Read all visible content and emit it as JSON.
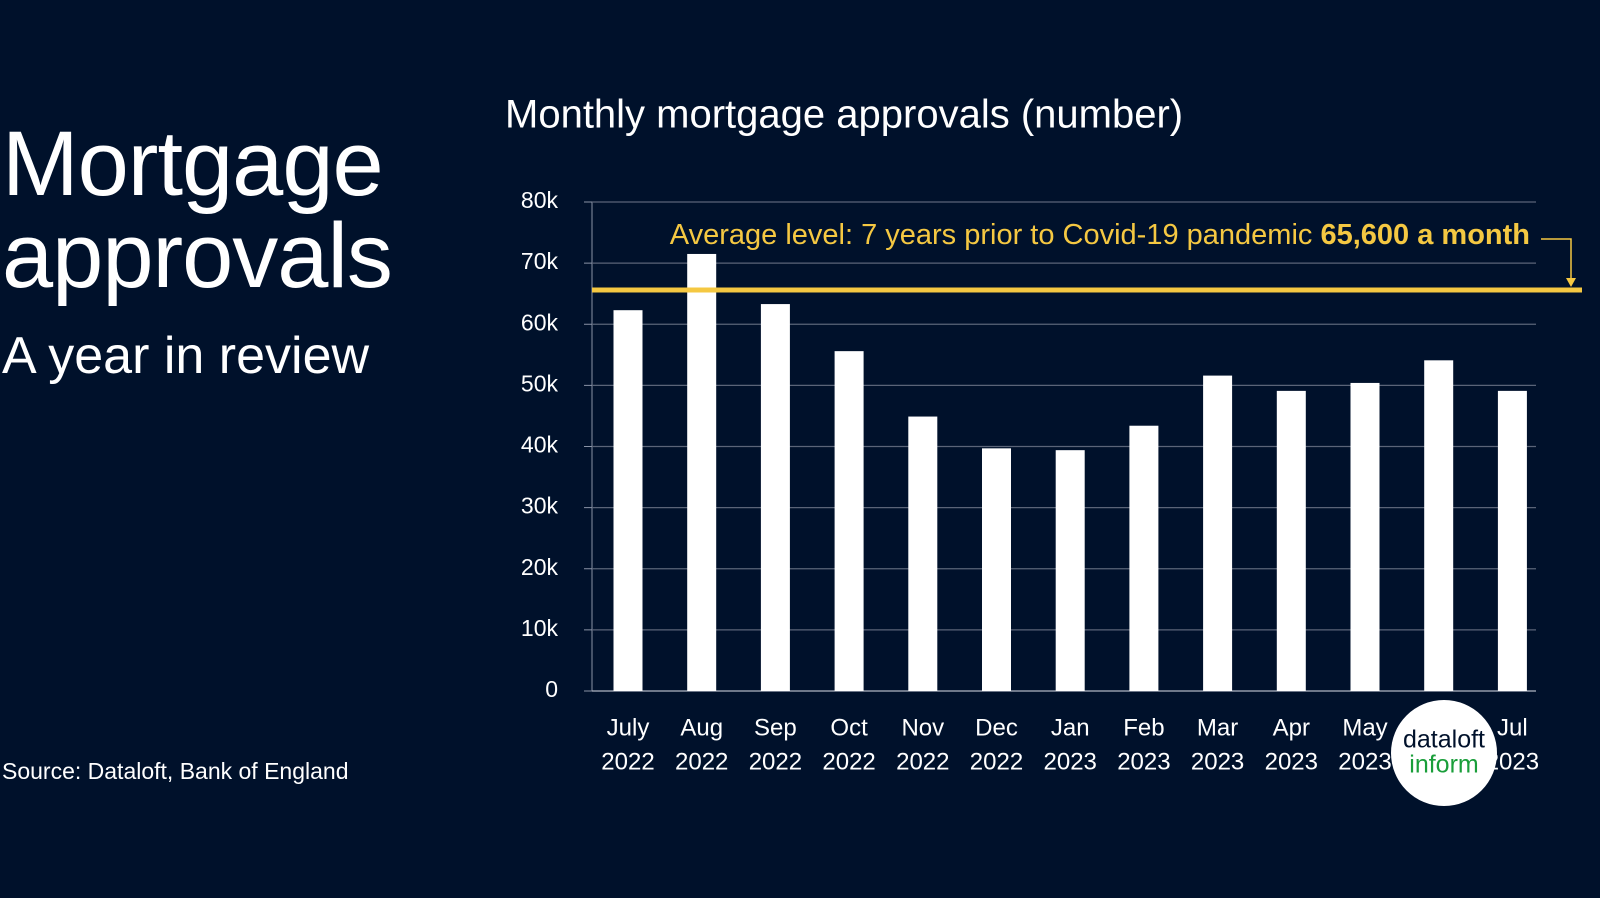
{
  "page_title": "Mortgage approvals",
  "page_subtitle": "A year in review",
  "source": "Source: Dataloft, Bank of England",
  "logo": {
    "top": "dataloft",
    "bottom": "inform"
  },
  "chart_data": {
    "type": "bar",
    "title": "Monthly mortgage approvals (number)",
    "categories": [
      [
        "July",
        "2022"
      ],
      [
        "Aug",
        "2022"
      ],
      [
        "Sep",
        "2022"
      ],
      [
        "Oct",
        "2022"
      ],
      [
        "Nov",
        "2022"
      ],
      [
        "Dec",
        "2022"
      ],
      [
        "Jan",
        "2023"
      ],
      [
        "Feb",
        "2023"
      ],
      [
        "Mar",
        "2023"
      ],
      [
        "Apr",
        "2023"
      ],
      [
        "May",
        "2023"
      ],
      null,
      [
        "Jul",
        "2023"
      ]
    ],
    "values": [
      62300,
      71500,
      63300,
      55600,
      44900,
      39700,
      39400,
      43400,
      51600,
      49100,
      50400,
      54100,
      49100
    ],
    "color": "#ffffff",
    "ylim": [
      0,
      80000
    ],
    "yticks": [
      0,
      {
        "value": 10000,
        "label": "10k"
      },
      {
        "value": 20000,
        "label": "20k"
      },
      {
        "value": 30000,
        "label": "30k"
      },
      {
        "value": 40000,
        "label": "40k"
      },
      {
        "value": 50000,
        "label": "50k"
      },
      {
        "value": 60000,
        "label": "60k"
      },
      {
        "value": 70000,
        "label": "70k"
      },
      {
        "value": 80000,
        "label": "80k"
      }
    ],
    "grid": true,
    "reference_line": {
      "value": 65600,
      "color": "#f5c842",
      "text": "Average level: 7 years prior to Covid-19 pandemic",
      "value_label": "65,600 a month"
    }
  }
}
